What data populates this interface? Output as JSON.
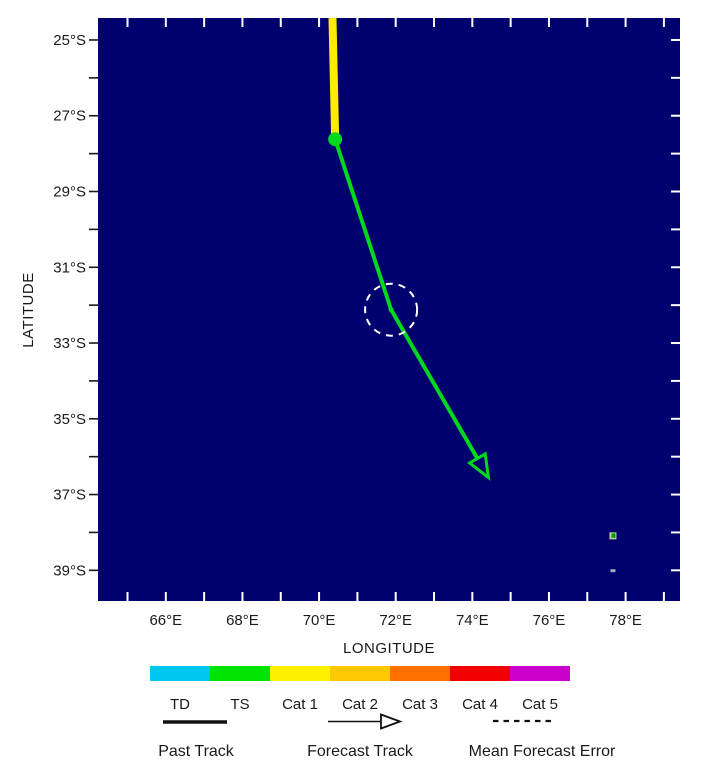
{
  "chart_data": {
    "type": "line",
    "title": "",
    "xlabel": "LONGITUDE",
    "ylabel": "LATITUDE",
    "xlim": [
      64.23,
      79.42
    ],
    "ylim": [
      24.42,
      39.81
    ],
    "x_major_ticks": [
      66,
      68,
      70,
      72,
      74,
      76,
      78
    ],
    "x_tick_labels": [
      "66°E",
      "68°E",
      "70°E",
      "72°E",
      "74°E",
      "76°E",
      "78°E"
    ],
    "y_major_ticks": [
      25,
      27,
      29,
      31,
      33,
      35,
      37,
      39
    ],
    "y_tick_labels": [
      "25°S",
      "27°S",
      "29°S",
      "31°S",
      "33°S",
      "35°S",
      "37°S",
      "39°S"
    ],
    "minor_tick_step": 1,
    "ocean_color": "#00006e",
    "grid": false,
    "series": [
      {
        "name": "past-track",
        "label": "Past Track",
        "color": "#ffeb00",
        "width": 8,
        "arrow": false,
        "points": [
          [
            70.35,
            24.42
          ],
          [
            70.42,
            27.62
          ]
        ]
      },
      {
        "name": "forecast-track",
        "label": "Forecast Track",
        "color": "#00d820",
        "width": 4,
        "arrow": true,
        "points": [
          [
            70.42,
            27.62
          ],
          [
            71.88,
            32.12
          ],
          [
            74.42,
            36.55
          ]
        ]
      }
    ],
    "markers": [
      {
        "name": "current-position",
        "lon": 70.42,
        "lat": 27.62,
        "radius_px": 7,
        "color": "#00d820"
      },
      {
        "name": "forecast-position",
        "lon": 71.88,
        "lat": 32.12,
        "radius_px": 2.5,
        "color": "#00d820"
      }
    ],
    "error_circle": {
      "lon": 71.88,
      "lat": 32.12,
      "radius_px": 26,
      "color": "#ffffff"
    },
    "islands": [
      {
        "lon": 77.67,
        "lat": 38.09,
        "kind": "ringed-islet"
      },
      {
        "lon": 77.67,
        "lat": 39.01,
        "kind": "islet"
      }
    ]
  },
  "legend": {
    "categories": [
      {
        "label": "TD",
        "color": "#00c8f0"
      },
      {
        "label": "TS",
        "color": "#00e400"
      },
      {
        "label": "Cat 1",
        "color": "#fff000"
      },
      {
        "label": "Cat 2",
        "color": "#ffc800"
      },
      {
        "label": "Cat 3",
        "color": "#ff7000"
      },
      {
        "label": "Cat 4",
        "color": "#f00000"
      },
      {
        "label": "Cat 5",
        "color": "#cc00cc"
      }
    ],
    "past_track_label": "Past Track",
    "forecast_track_label": "Forecast Track",
    "error_label": "Mean Forecast Error"
  }
}
